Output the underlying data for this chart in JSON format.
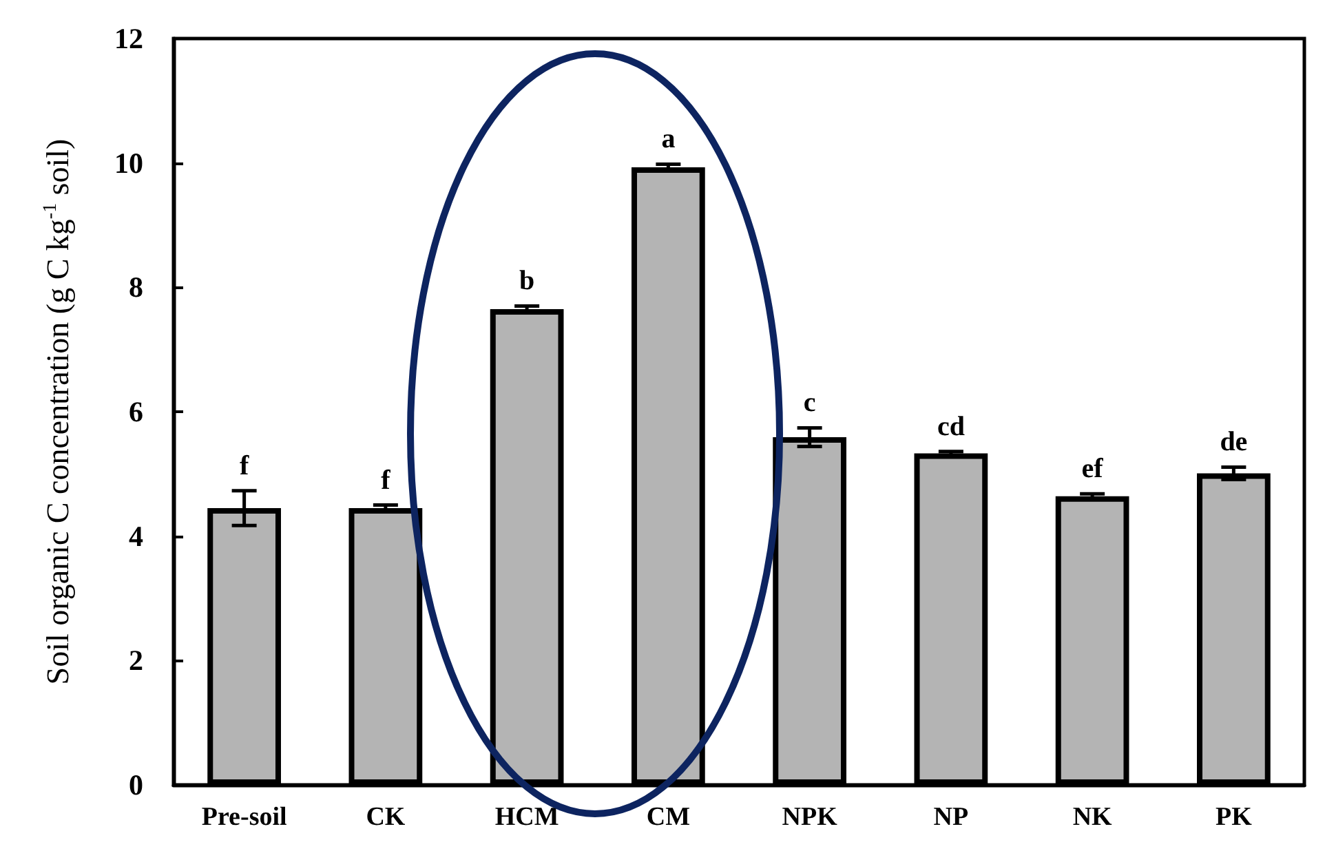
{
  "chart_data": {
    "type": "bar",
    "ylabel": "Soil organic C concentration (g C kg$^{-1}$ soil)",
    "categories": [
      "Pre-soil",
      "CK",
      "HCM",
      "CM",
      "NPK",
      "NP",
      "NK",
      "PK"
    ],
    "values": [
      4.45,
      4.45,
      7.65,
      9.93,
      5.59,
      5.33,
      4.64,
      5.01
    ],
    "errors": [
      0.28,
      0.05,
      0.05,
      0.05,
      0.15,
      0.03,
      0.04,
      0.1
    ],
    "color": "#b4b4b4",
    "ylim": [
      0,
      12
    ],
    "yticks": [
      0,
      2,
      4,
      6,
      8,
      10,
      12
    ],
    "annotations": [
      {
        "text": "f",
        "x": "Pre-soil",
        "y": 4.73
      },
      {
        "text": "f",
        "x": "CK",
        "y": 4.5
      },
      {
        "text": "b",
        "x": "HCM",
        "y": 7.7
      },
      {
        "text": "a",
        "x": "CM",
        "y": 9.98
      },
      {
        "text": "c",
        "x": "NPK",
        "y": 5.74
      },
      {
        "text": "cd",
        "x": "NP",
        "y": 5.36
      },
      {
        "text": "ef",
        "x": "NK",
        "y": 4.68
      },
      {
        "text": "de",
        "x": "PK",
        "y": 5.11
      }
    ]
  }
}
